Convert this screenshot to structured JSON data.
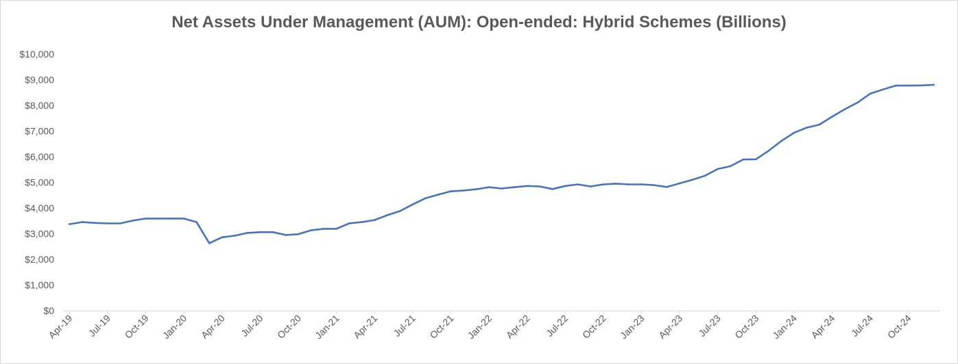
{
  "chart_data": {
    "type": "line",
    "title": "Net Assets Under Management (AUM): Open-ended: Hybrid Schemes (Billions)",
    "xlabel": "",
    "ylabel": "",
    "ylim": [
      0,
      10000
    ],
    "y_ticks": [
      0,
      1000,
      2000,
      3000,
      4000,
      5000,
      6000,
      7000,
      8000,
      9000,
      10000
    ],
    "y_tick_labels": [
      "$0",
      "$1,000",
      "$2,000",
      "$3,000",
      "$4,000",
      "$5,000",
      "$6,000",
      "$7,000",
      "$8,000",
      "$9,000",
      "$10,000"
    ],
    "x_tick_labels": [
      "Apr-19",
      "Jul-19",
      "Oct-19",
      "Jan-20",
      "Apr-20",
      "Jul-20",
      "Oct-20",
      "Jan-21",
      "Apr-21",
      "Jul-21",
      "Oct-21",
      "Jan-22",
      "Apr-22",
      "Jul-22",
      "Oct-22",
      "Jan-23",
      "Apr-23",
      "Jul-23",
      "Oct-23",
      "Jan-24",
      "Apr-24",
      "Jul-24",
      "Oct-24"
    ],
    "grid": false,
    "legend": "none",
    "color": "#4472c4",
    "series": [
      {
        "x": [
          "Apr-19",
          "May-19",
          "Jun-19",
          "Jul-19",
          "Aug-19",
          "Sep-19",
          "Oct-19",
          "Nov-19",
          "Dec-19",
          "Jan-20",
          "Feb-20",
          "Mar-20",
          "Apr-20",
          "May-20",
          "Jun-20",
          "Jul-20",
          "Aug-20",
          "Sep-20",
          "Oct-20",
          "Nov-20",
          "Dec-20",
          "Jan-21",
          "Feb-21",
          "Mar-21",
          "Apr-21",
          "May-21",
          "Jun-21",
          "Jul-21",
          "Aug-21",
          "Sep-21",
          "Oct-21",
          "Nov-21",
          "Dec-21",
          "Jan-22",
          "Feb-22",
          "Mar-22",
          "Apr-22",
          "May-22",
          "Jun-22",
          "Jul-22",
          "Aug-22",
          "Sep-22",
          "Oct-22",
          "Nov-22",
          "Dec-22",
          "Jan-23",
          "Feb-23",
          "Mar-23",
          "Apr-23",
          "May-23",
          "Jun-23",
          "Jul-23",
          "Aug-23",
          "Sep-23",
          "Oct-23",
          "Nov-23",
          "Dec-23",
          "Jan-24",
          "Feb-24",
          "Mar-24",
          "Apr-24",
          "May-24",
          "Jun-24",
          "Jul-24",
          "Aug-24",
          "Sep-24",
          "Oct-24",
          "Nov-24",
          "Dec-24"
        ],
        "values": [
          3370,
          3450,
          3420,
          3400,
          3400,
          3510,
          3590,
          3590,
          3590,
          3590,
          3450,
          2630,
          2860,
          2920,
          3030,
          3060,
          3060,
          2950,
          2980,
          3130,
          3190,
          3190,
          3400,
          3450,
          3530,
          3720,
          3880,
          4140,
          4380,
          4520,
          4650,
          4680,
          4730,
          4810,
          4760,
          4810,
          4860,
          4840,
          4740,
          4860,
          4920,
          4840,
          4920,
          4950,
          4920,
          4920,
          4890,
          4820,
          4960,
          5100,
          5260,
          5520,
          5630,
          5890,
          5900,
          6230,
          6610,
          6930,
          7130,
          7250,
          7560,
          7850,
          8110,
          8460,
          8620,
          8770,
          8770,
          8780,
          8800
        ]
      }
    ]
  }
}
